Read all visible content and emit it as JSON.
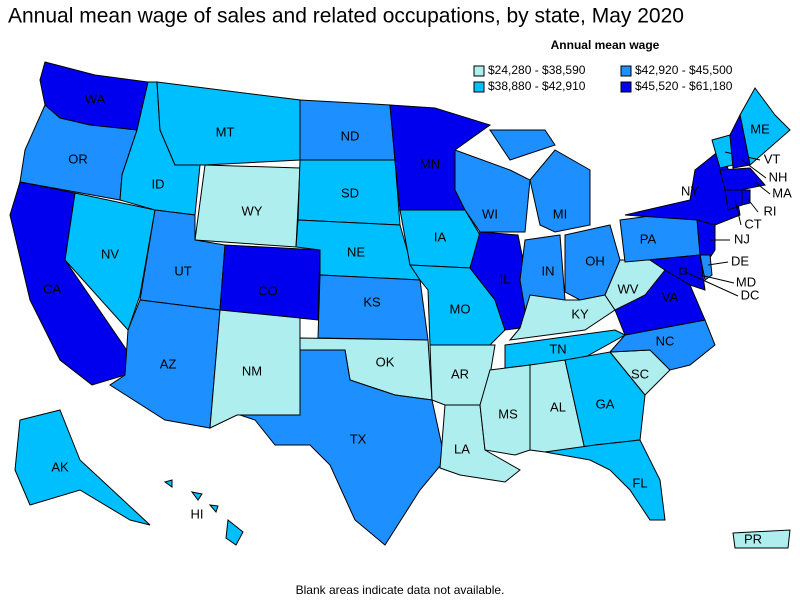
{
  "map_data": {
    "title": "Annual mean wage of sales and related occupations, by state, May 2020",
    "legend": {
      "title": "Annual mean wage",
      "entries": [
        {
          "label": "$24,280 - $38,590",
          "color": "#aeeeee"
        },
        {
          "label": "$38,880 - $42,910",
          "color": "#00bfff"
        },
        {
          "label": "$42,920 - $45,500",
          "color": "#1e8fff"
        },
        {
          "label": "$45,520 - $61,180",
          "color": "#0000ee"
        }
      ]
    },
    "states": [
      {
        "label": "WA",
        "color": "#0000ee"
      },
      {
        "label": "OR",
        "color": "#1e8fff"
      },
      {
        "label": "CA",
        "color": "#0000ee"
      },
      {
        "label": "NV",
        "color": "#00bfff"
      },
      {
        "label": "ID",
        "color": "#00bfff"
      },
      {
        "label": "MT",
        "color": "#00bfff"
      },
      {
        "label": "WY",
        "color": "#aeeeee"
      },
      {
        "label": "UT",
        "color": "#1e8fff"
      },
      {
        "label": "CO",
        "color": "#0000ee"
      },
      {
        "label": "AZ",
        "color": "#1e8fff"
      },
      {
        "label": "NM",
        "color": "#aeeeee"
      },
      {
        "label": "ND",
        "color": "#1e8fff"
      },
      {
        "label": "SD",
        "color": "#00bfff"
      },
      {
        "label": "NE",
        "color": "#00bfff"
      },
      {
        "label": "KS",
        "color": "#1e8fff"
      },
      {
        "label": "OK",
        "color": "#aeeeee"
      },
      {
        "label": "TX",
        "color": "#1e8fff"
      },
      {
        "label": "MN",
        "color": "#0000ee"
      },
      {
        "label": "IA",
        "color": "#00bfff"
      },
      {
        "label": "MO",
        "color": "#00bfff"
      },
      {
        "label": "AR",
        "color": "#aeeeee"
      },
      {
        "label": "LA",
        "color": "#aeeeee"
      },
      {
        "label": "WI",
        "color": "#1e8fff"
      },
      {
        "label": "IL",
        "color": "#0000ee"
      },
      {
        "label": "MI",
        "color": "#1e8fff"
      },
      {
        "label": "IN",
        "color": "#1e8fff"
      },
      {
        "label": "OH",
        "color": "#1e8fff"
      },
      {
        "label": "KY",
        "color": "#aeeeee"
      },
      {
        "label": "TN",
        "color": "#00bfff"
      },
      {
        "label": "MS",
        "color": "#aeeeee"
      },
      {
        "label": "AL",
        "color": "#aeeeee"
      },
      {
        "label": "GA",
        "color": "#00bfff"
      },
      {
        "label": "FL",
        "color": "#00bfff"
      },
      {
        "label": "SC",
        "color": "#aeeeee"
      },
      {
        "label": "NC",
        "color": "#1e8fff"
      },
      {
        "label": "VA",
        "color": "#0000ee"
      },
      {
        "label": "WV",
        "color": "#aeeeee"
      },
      {
        "label": "PA",
        "color": "#1e8fff"
      },
      {
        "label": "NY",
        "color": "#0000ee"
      },
      {
        "label": "ME",
        "color": "#00bfff"
      },
      {
        "label": "VT",
        "color": "#00bfff"
      },
      {
        "label": "NH",
        "color": "#0000ee"
      },
      {
        "label": "MA",
        "color": "#0000ee"
      },
      {
        "label": "CT",
        "color": "#0000ee"
      },
      {
        "label": "RI",
        "color": "#0000ee"
      },
      {
        "label": "NJ",
        "color": "#0000ee"
      },
      {
        "label": "DE",
        "color": "#1e8fff"
      },
      {
        "label": "MD",
        "color": "#0000ee"
      },
      {
        "label": "DC",
        "color": "#0000ee"
      },
      {
        "label": "AK",
        "color": "#00bfff"
      },
      {
        "label": "HI",
        "color": "#00bfff"
      },
      {
        "label": "PR",
        "color": "#aeeeee"
      }
    ],
    "footnote": "Blank areas indicate data not available."
  }
}
